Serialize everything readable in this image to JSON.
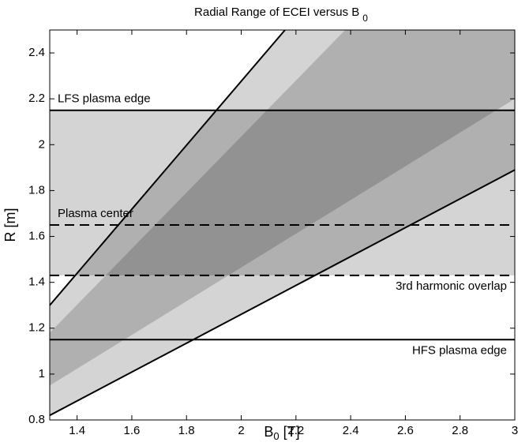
{
  "chart_data": {
    "type": "line",
    "title": {
      "text": "Radial Range of ECEI versus B",
      "sub": "0"
    },
    "xlabel": {
      "text": "B",
      "sub": "0",
      "unit": "[T]"
    },
    "ylabel": "R [m]",
    "xlim": [
      1.3,
      3
    ],
    "ylim": [
      0.8,
      2.5
    ],
    "xticks": [
      1.4,
      1.6,
      1.8,
      2,
      2.2,
      2.4,
      2.6,
      2.8,
      3
    ],
    "yticks": [
      0.8,
      1,
      1.2,
      1.4,
      1.6,
      1.8,
      2,
      2.2,
      2.4
    ],
    "regions": [
      {
        "x": [
          1.3,
          3,
          3,
          1.3
        ],
        "y": [
          1.43,
          1.43,
          2.15,
          2.15
        ],
        "color": "#000000"
      },
      {
        "x": [
          1.3,
          2.16,
          3,
          3,
          1.3
        ],
        "y": [
          1.3,
          2.5,
          2.5,
          1.89,
          0.82
        ],
        "color": "#000000"
      },
      {
        "x": [
          1.3,
          1.3,
          2.38,
          3,
          3
        ],
        "y": [
          0.95,
          1.18,
          2.5,
          2.5,
          2.2
        ],
        "color": "#000000"
      }
    ],
    "boundaries": [
      {
        "x": [
          1.3,
          2.16
        ],
        "y": [
          1.3,
          2.5
        ],
        "color": "#000000"
      },
      {
        "x": [
          1.3,
          3
        ],
        "y": [
          0.82,
          1.89
        ],
        "color": "#000000"
      }
    ],
    "hlines": [
      {
        "y": 2.15,
        "label": "LFS plasma edge",
        "style": "solid"
      },
      {
        "y": 1.65,
        "label": "Plasma center",
        "style": "dashed"
      },
      {
        "y": 1.43,
        "label": "3rd harmonic overlap",
        "style": "dashed"
      },
      {
        "y": 1.15,
        "label": "HFS plasma edge",
        "style": "solid"
      }
    ]
  }
}
